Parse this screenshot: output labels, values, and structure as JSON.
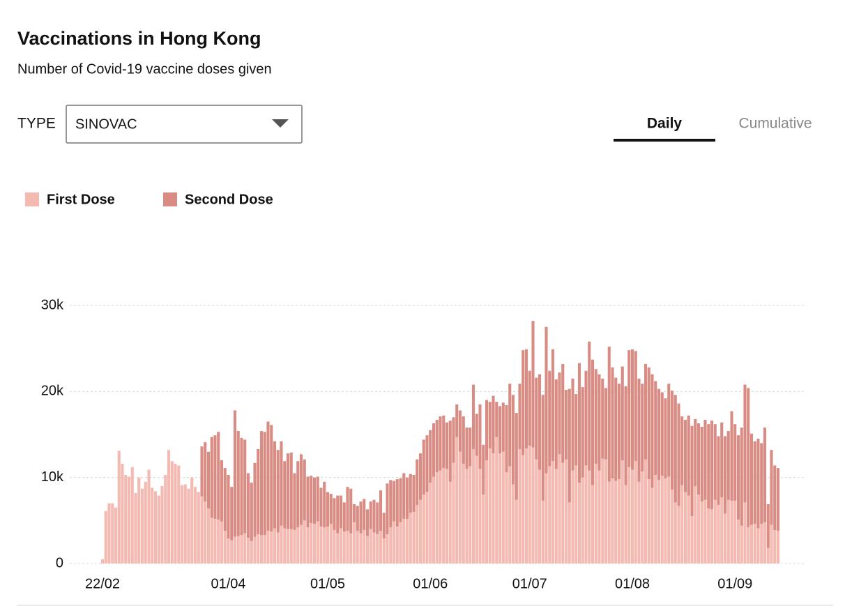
{
  "controls": {
    "type_label": "TYPE",
    "type_value": "SINOVAC",
    "tabs": [
      "Daily",
      "Cumulative"
    ]
  },
  "chart_data": {
    "type": "stacked_bar",
    "title": "Vaccinations in Hong Kong",
    "subtitle": "Number of Covid-19 vaccine doses given",
    "categories": [
      "22/02",
      null,
      null,
      null,
      null,
      null,
      null,
      null,
      null,
      null,
      null,
      null,
      null,
      null,
      null,
      null,
      null,
      null,
      null,
      null,
      null,
      null,
      null,
      null,
      null,
      null,
      null,
      null,
      null,
      null,
      null,
      null,
      null,
      null,
      null,
      null,
      null,
      null,
      "01/04",
      null,
      null,
      null,
      null,
      null,
      null,
      null,
      null,
      null,
      null,
      null,
      null,
      null,
      null,
      null,
      null,
      null,
      null,
      null,
      null,
      null,
      null,
      null,
      null,
      null,
      null,
      null,
      null,
      null,
      "01/05",
      null,
      null,
      null,
      null,
      null,
      null,
      null,
      null,
      null,
      null,
      null,
      null,
      null,
      null,
      null,
      null,
      null,
      null,
      null,
      null,
      null,
      null,
      null,
      null,
      null,
      null,
      null,
      null,
      null,
      null,
      "01/06",
      null,
      null,
      null,
      null,
      null,
      null,
      null,
      null,
      null,
      null,
      null,
      null,
      null,
      null,
      null,
      null,
      null,
      null,
      null,
      null,
      null,
      null,
      null,
      null,
      null,
      null,
      null,
      null,
      null,
      "01/07",
      null,
      null,
      null,
      null,
      null,
      null,
      null,
      null,
      null,
      null,
      null,
      null,
      null,
      null,
      null,
      null,
      null,
      null,
      null,
      null,
      null,
      null,
      null,
      null,
      null,
      null,
      null,
      null,
      null,
      null,
      "01/08",
      null,
      null,
      null,
      null,
      null,
      null,
      null,
      null,
      null,
      null,
      null,
      null,
      null,
      null,
      null,
      null,
      null,
      null,
      null,
      null,
      null,
      null,
      null,
      null,
      null,
      null,
      null,
      null,
      null,
      null,
      "01/09",
      null,
      null,
      null,
      null,
      null,
      null,
      null,
      null,
      null,
      null,
      null,
      null,
      null
    ],
    "series": [
      {
        "name": "First Dose",
        "color": "#f4b9b0",
        "values": [
          500,
          6100,
          7000,
          7000,
          6500,
          13100,
          11600,
          10300,
          10100,
          11200,
          8200,
          10000,
          8700,
          9500,
          10900,
          8800,
          8400,
          7900,
          9000,
          10300,
          13200,
          11900,
          11600,
          11400,
          9100,
          9200,
          8700,
          10000,
          8900,
          8300,
          7800,
          7200,
          6400,
          5300,
          5200,
          5100,
          4900,
          3800,
          2900,
          2700,
          3100,
          3200,
          3300,
          3500,
          3000,
          2600,
          3100,
          3400,
          3300,
          3300,
          3800,
          3700,
          4100,
          3600,
          4400,
          4100,
          4000,
          4000,
          3900,
          4200,
          4500,
          5000,
          4200,
          4700,
          4600,
          4900,
          4300,
          4200,
          4300,
          4600,
          3900,
          3500,
          4100,
          3700,
          3800,
          3500,
          4800,
          3800,
          3500,
          3900,
          3200,
          4000,
          3600,
          3400,
          3800,
          2900,
          3400,
          4200,
          4900,
          4300,
          4800,
          5200,
          5200,
          5900,
          6000,
          6800,
          7400,
          8000,
          8300,
          9400,
          10100,
          10600,
          10800,
          11100,
          11000,
          9500,
          11700,
          14700,
          13000,
          11600,
          11000,
          11300,
          13300,
          12500,
          11000,
          8000,
          12000,
          13400,
          12800,
          14700,
          12800,
          13000,
          10600,
          11300,
          9200,
          7400,
          13300,
          12600,
          13400,
          13700,
          13500,
          12100,
          10900,
          7300,
          10500,
          11300,
          11900,
          11000,
          12700,
          11700,
          12100,
          7100,
          10800,
          11400,
          9400,
          10000,
          11400,
          10800,
          9100,
          11600,
          10800,
          12200,
          12100,
          9500,
          9900,
          9600,
          9800,
          12000,
          9100,
          11200,
          10900,
          11900,
          9500,
          10700,
          12100,
          9800,
          8800,
          10300,
          9700,
          10200,
          9900,
          10100,
          8600,
          7100,
          6700,
          9100,
          8300,
          7900,
          5500,
          9000,
          8000,
          7200,
          7400,
          6400,
          6300,
          7400,
          6800,
          7700,
          5800,
          7400,
          7300,
          7300,
          5100,
          4400,
          7100,
          4200,
          4500,
          4600,
          4100,
          4600,
          4800,
          1800,
          4500,
          3900,
          3800
        ]
      },
      {
        "name": "Second Dose",
        "color": "#d98c84",
        "values": [
          0,
          0,
          0,
          0,
          0,
          0,
          0,
          0,
          0,
          0,
          0,
          0,
          0,
          0,
          0,
          0,
          0,
          0,
          0,
          0,
          0,
          0,
          0,
          0,
          0,
          0,
          0,
          0,
          0,
          0,
          5800,
          6900,
          6600,
          9400,
          9700,
          10200,
          7100,
          7300,
          7400,
          6200,
          14700,
          12200,
          11300,
          10900,
          7500,
          6800,
          8600,
          9900,
          12100,
          12000,
          12700,
          12400,
          10100,
          9600,
          9800,
          7800,
          8800,
          8900,
          6600,
          7700,
          8200,
          7100,
          5900,
          5500,
          5400,
          5200,
          4500,
          5300,
          4000,
          3500,
          3700,
          4400,
          3800,
          3400,
          5100,
          5200,
          2100,
          2900,
          3700,
          3600,
          3100,
          3200,
          3800,
          3700,
          4700,
          3000,
          5900,
          5500,
          4700,
          5500,
          5100,
          5300,
          4800,
          4500,
          4300,
          5300,
          5400,
          6400,
          6600,
          6100,
          6200,
          6100,
          6300,
          6100,
          5400,
          7100,
          5300,
          3800,
          4800,
          5500,
          4800,
          4500,
          7500,
          4900,
          7500,
          5800,
          7000,
          5400,
          6700,
          4100,
          5500,
          5700,
          7800,
          9600,
          10400,
          10100,
          7600,
          12200,
          11500,
          8700,
          14700,
          9500,
          11100,
          12300,
          17000,
          11100,
          13000,
          10400,
          9500,
          11500,
          8100,
          13200,
          10700,
          8300,
          13900,
          10500,
          11000,
          15000,
          14600,
          11000,
          11200,
          9300,
          8300,
          15700,
          12900,
          12000,
          11100,
          10900,
          11500,
          13600,
          14000,
          12800,
          12000,
          10200,
          11100,
          13000,
          13200,
          10900,
          10600,
          9700,
          9300,
          10800,
          11500,
          12500,
          11900,
          8000,
          8400,
          9300,
          10500,
          7800,
          8300,
          8700,
          9300,
          9800,
          10300,
          8800,
          8000,
          8700,
          9000,
          8000,
          10400,
          8900,
          9800,
          11400,
          13700,
          16200,
          10600,
          9600,
          10400,
          9400,
          11000,
          5100,
          8700,
          7500,
          7300
        ]
      }
    ],
    "ylim": [
      0,
      30000
    ],
    "yticks": [
      0,
      {
        "value": 10000,
        "label": "10k"
      },
      {
        "value": 20000,
        "label": "20k"
      },
      {
        "value": 30000,
        "label": "30k"
      }
    ],
    "grid": true
  }
}
